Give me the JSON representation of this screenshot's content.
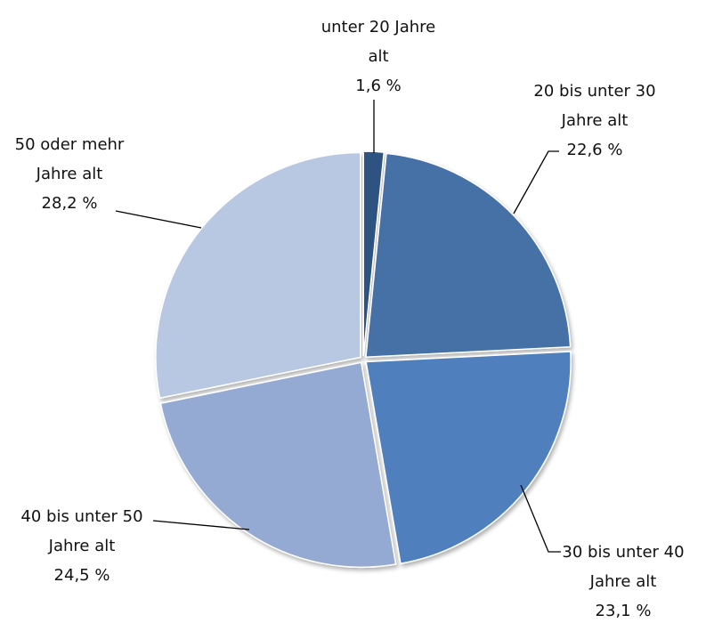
{
  "chart_data": {
    "type": "pie",
    "categories": [
      "unter 20 Jahre alt",
      "20 bis unter 30 Jahre alt",
      "30 bis unter 40 Jahre alt",
      "40 bis unter 50 Jahre alt",
      "50 oder mehr Jahre alt"
    ],
    "values": [
      1.6,
      22.6,
      23.1,
      24.5,
      28.2
    ],
    "value_labels": [
      "1,6 %",
      "22,6 %",
      "23,1 %",
      "24,5 %",
      "28,2 %"
    ],
    "colors": [
      "#2f5283",
      "#4571a7",
      "#4f80bd",
      "#95aad2",
      "#b9c8e2"
    ]
  }
}
